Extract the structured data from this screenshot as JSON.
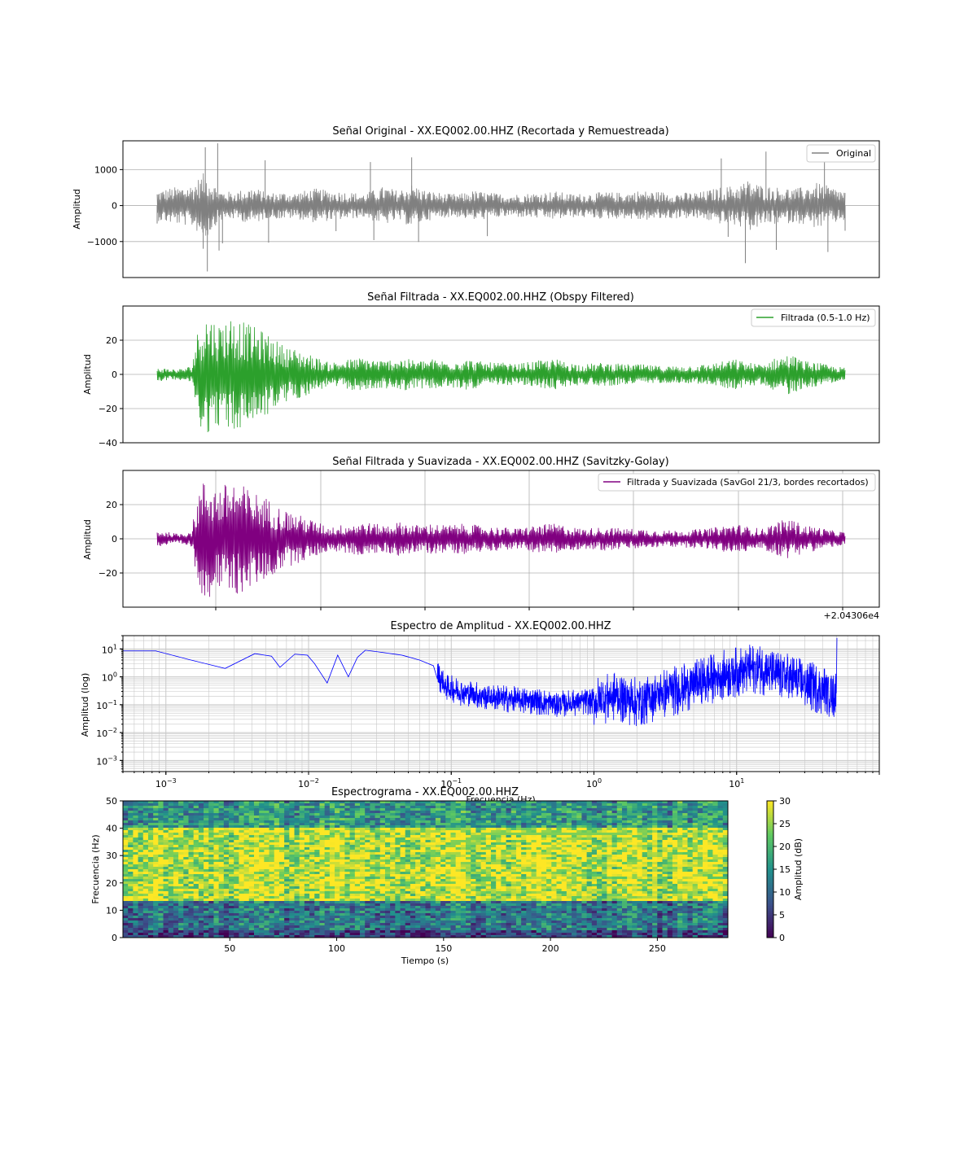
{
  "chart_data": [
    {
      "type": "line",
      "title": "Señal Original - XX.EQ002.00.HHZ (Recortada y Remuestreada)",
      "ylabel": "Amplitud",
      "xlabel": "",
      "ylim": [
        -2000,
        1800
      ],
      "yticks": [
        1000,
        0,
        -1000
      ],
      "ytick_labels": [
        "1000",
        "0",
        "−1000"
      ],
      "grid": true,
      "legend": "top-right",
      "series": [
        {
          "name": "Original",
          "color": "#808080",
          "envelope": [
            [
              0.0,
              420
            ],
            [
              0.02,
              500
            ],
            [
              0.05,
              580
            ],
            [
              0.07,
              950
            ],
            [
              0.09,
              420
            ],
            [
              0.11,
              380
            ],
            [
              0.14,
              520
            ],
            [
              0.16,
              350
            ],
            [
              0.18,
              380
            ],
            [
              0.2,
              360
            ],
            [
              0.23,
              480
            ],
            [
              0.25,
              420
            ],
            [
              0.28,
              380
            ],
            [
              0.3,
              330
            ],
            [
              0.33,
              540
            ],
            [
              0.35,
              420
            ],
            [
              0.37,
              600
            ],
            [
              0.39,
              430
            ],
            [
              0.42,
              330
            ],
            [
              0.44,
              330
            ],
            [
              0.46,
              420
            ],
            [
              0.48,
              370
            ],
            [
              0.5,
              330
            ],
            [
              0.52,
              320
            ],
            [
              0.55,
              360
            ],
            [
              0.58,
              400
            ],
            [
              0.6,
              330
            ],
            [
              0.62,
              340
            ],
            [
              0.65,
              380
            ],
            [
              0.68,
              360
            ],
            [
              0.7,
              420
            ],
            [
              0.73,
              390
            ],
            [
              0.76,
              360
            ],
            [
              0.79,
              380
            ],
            [
              0.82,
              520
            ],
            [
              0.84,
              560
            ],
            [
              0.86,
              720
            ],
            [
              0.88,
              560
            ],
            [
              0.9,
              520
            ],
            [
              0.93,
              480
            ],
            [
              0.96,
              640
            ],
            [
              0.98,
              520
            ],
            [
              1.0,
              420
            ]
          ],
          "spikes": [
            [
              0.0,
              -500
            ],
            [
              0.067,
              -1200
            ],
            [
              0.07,
              1620
            ],
            [
              0.073,
              -1830
            ],
            [
              0.088,
              1730
            ],
            [
              0.095,
              -1050
            ],
            [
              0.09,
              -1250
            ],
            [
              0.157,
              1260
            ],
            [
              0.162,
              -1030
            ],
            [
              0.26,
              -710
            ],
            [
              0.31,
              1210
            ],
            [
              0.315,
              -960
            ],
            [
              0.37,
              1340
            ],
            [
              0.38,
              -1010
            ],
            [
              0.48,
              -850
            ],
            [
              0.82,
              1310
            ],
            [
              0.83,
              -870
            ],
            [
              0.855,
              -1600
            ],
            [
              0.885,
              1500
            ],
            [
              0.9,
              -1230
            ],
            [
              0.97,
              1670
            ],
            [
              0.975,
              -1290
            ],
            [
              1.0,
              -700
            ]
          ]
        }
      ]
    },
    {
      "type": "line",
      "title": "Señal Filtrada - XX.EQ002.00.HHZ (Obspy Filtered)",
      "ylabel": "Amplitud",
      "xlabel": "",
      "ylim": [
        -40,
        40
      ],
      "yticks": [
        20,
        0,
        -20,
        -40
      ],
      "ytick_labels": [
        "20",
        "0",
        "−20",
        "−40"
      ],
      "grid": true,
      "legend": "top-right",
      "series": [
        {
          "name": "Filtrada (0.5-1.0 Hz)",
          "color": "#2ca02c",
          "envelope": [
            [
              0.0,
              4
            ],
            [
              0.03,
              3
            ],
            [
              0.05,
              5
            ],
            [
              0.06,
              28
            ],
            [
              0.07,
              36
            ],
            [
              0.09,
              30
            ],
            [
              0.11,
              35
            ],
            [
              0.13,
              30
            ],
            [
              0.16,
              24
            ],
            [
              0.18,
              18
            ],
            [
              0.2,
              15
            ],
            [
              0.22,
              12
            ],
            [
              0.25,
              7
            ],
            [
              0.28,
              9
            ],
            [
              0.3,
              10
            ],
            [
              0.33,
              8
            ],
            [
              0.35,
              10
            ],
            [
              0.38,
              8
            ],
            [
              0.4,
              9
            ],
            [
              0.42,
              8
            ],
            [
              0.45,
              9
            ],
            [
              0.48,
              7
            ],
            [
              0.5,
              7
            ],
            [
              0.52,
              6
            ],
            [
              0.55,
              8
            ],
            [
              0.58,
              9
            ],
            [
              0.6,
              7
            ],
            [
              0.62,
              6
            ],
            [
              0.65,
              7
            ],
            [
              0.68,
              6
            ],
            [
              0.7,
              6
            ],
            [
              0.73,
              5
            ],
            [
              0.76,
              5
            ],
            [
              0.8,
              6
            ],
            [
              0.84,
              9
            ],
            [
              0.86,
              7
            ],
            [
              0.88,
              6
            ],
            [
              0.9,
              10
            ],
            [
              0.92,
              12
            ],
            [
              0.94,
              8
            ],
            [
              0.96,
              7
            ],
            [
              0.98,
              5
            ],
            [
              1.0,
              4
            ]
          ]
        }
      ]
    },
    {
      "type": "line",
      "title": "Señal Filtrada y Suavizada - XX.EQ002.00.HHZ (Savitzky-Golay)",
      "ylabel": "Amplitud",
      "xlabel": "",
      "ylim": [
        -40,
        40
      ],
      "yticks": [
        20,
        0,
        -20
      ],
      "ytick_labels": [
        "20",
        "0",
        "−20"
      ],
      "offset_text": "+2.04306e4",
      "grid": true,
      "legend": "top-right",
      "series": [
        {
          "name": "Filtrada y Suavizada (SavGol 21/3, bordes recortados)",
          "color": "#800080",
          "envelope": [
            [
              0.0,
              5
            ],
            [
              0.03,
              3
            ],
            [
              0.05,
              5
            ],
            [
              0.06,
              28
            ],
            [
              0.07,
              36
            ],
            [
              0.09,
              30
            ],
            [
              0.11,
              35
            ],
            [
              0.13,
              30
            ],
            [
              0.16,
              24
            ],
            [
              0.18,
              18
            ],
            [
              0.2,
              15
            ],
            [
              0.22,
              12
            ],
            [
              0.25,
              7
            ],
            [
              0.28,
              9
            ],
            [
              0.3,
              10
            ],
            [
              0.33,
              8
            ],
            [
              0.35,
              10
            ],
            [
              0.38,
              8
            ],
            [
              0.4,
              9
            ],
            [
              0.42,
              8
            ],
            [
              0.45,
              9
            ],
            [
              0.48,
              7
            ],
            [
              0.5,
              7
            ],
            [
              0.52,
              6
            ],
            [
              0.55,
              8
            ],
            [
              0.58,
              9
            ],
            [
              0.6,
              7
            ],
            [
              0.62,
              6
            ],
            [
              0.65,
              7
            ],
            [
              0.68,
              6
            ],
            [
              0.7,
              6
            ],
            [
              0.73,
              5
            ],
            [
              0.76,
              5
            ],
            [
              0.8,
              6
            ],
            [
              0.84,
              9
            ],
            [
              0.86,
              7
            ],
            [
              0.88,
              6
            ],
            [
              0.9,
              10
            ],
            [
              0.92,
              12
            ],
            [
              0.94,
              8
            ],
            [
              0.96,
              7
            ],
            [
              0.98,
              5
            ],
            [
              1.0,
              4
            ]
          ]
        }
      ]
    },
    {
      "type": "line",
      "title": "Espectro de Amplitud - XX.EQ002.00.HHZ",
      "ylabel": "Amplitud (log)",
      "xlabel": "Frecuencia (Hz)",
      "xscale": "log",
      "yscale": "log",
      "xlim": [
        0.0005,
        100
      ],
      "ylim": [
        0.0004,
        30
      ],
      "xtick_labels": [
        "10−3",
        "10−2",
        "10−1",
        "100",
        "101"
      ],
      "ytick_labels": [
        "101",
        "100",
        "10−1",
        "10−2",
        "10−3"
      ],
      "grid": true,
      "series": [
        {
          "name": "",
          "color": "#0000ff",
          "points": [
            [
              0.0005,
              8.5
            ],
            [
              0.00085,
              8.5
            ],
            [
              0.0015,
              4
            ],
            [
              0.0026,
              2
            ],
            [
              0.0042,
              6.8
            ],
            [
              0.0055,
              5.5
            ],
            [
              0.0063,
              2.2
            ],
            [
              0.008,
              6.5
            ],
            [
              0.0098,
              6
            ],
            [
              0.011,
              3
            ],
            [
              0.0135,
              0.6
            ],
            [
              0.016,
              6
            ],
            [
              0.019,
              1
            ],
            [
              0.022,
              5
            ],
            [
              0.025,
              9
            ],
            [
              0.03,
              8
            ],
            [
              0.045,
              6
            ],
            [
              0.06,
              4
            ],
            [
              0.075,
              2.5
            ],
            [
              0.09,
              0.5
            ],
            [
              0.12,
              0.3
            ],
            [
              0.2,
              0.2
            ],
            [
              0.35,
              0.15
            ],
            [
              0.6,
              0.12
            ],
            [
              1.0,
              0.15
            ],
            [
              1.4,
              0.25
            ],
            [
              2.0,
              0.15
            ],
            [
              3.0,
              0.3
            ],
            [
              5.0,
              0.6
            ],
            [
              8.0,
              1.5
            ],
            [
              14,
              2.5
            ],
            [
              22,
              1.2
            ],
            [
              35,
              0.5
            ],
            [
              50,
              0.3
            ],
            [
              50.5,
              25
            ]
          ],
          "noise_from_hz": 0.08
        }
      ]
    },
    {
      "type": "heatmap",
      "title": "Espectrograma - XX.EQ002.00.HHZ",
      "xlabel": "Tiempo (s)",
      "ylabel": "Frecuencia (Hz)",
      "xlim": [
        0,
        283
      ],
      "ylim": [
        0,
        50
      ],
      "xticks": [
        50,
        100,
        150,
        200,
        250
      ],
      "yticks": [
        0,
        10,
        20,
        30,
        40,
        50
      ],
      "colormap": "viridis",
      "colorbar": {
        "label": "Amplitud (dB)",
        "min": 0,
        "max": 30,
        "ticks": [
          0,
          5,
          10,
          15,
          20,
          25,
          30
        ]
      },
      "bands_db": [
        {
          "from_hz": 0,
          "to_hz": 3,
          "db": 6
        },
        {
          "from_hz": 3,
          "to_hz": 13,
          "db": 12
        },
        {
          "from_hz": 13,
          "to_hz": 40,
          "db": 27
        },
        {
          "from_hz": 40,
          "to_hz": 50,
          "db": 16
        }
      ],
      "tonal_line": {
        "t_start": 150,
        "t_ramp_end": 170,
        "t_end": 235,
        "hz_start": 33,
        "hz": 38
      }
    }
  ]
}
